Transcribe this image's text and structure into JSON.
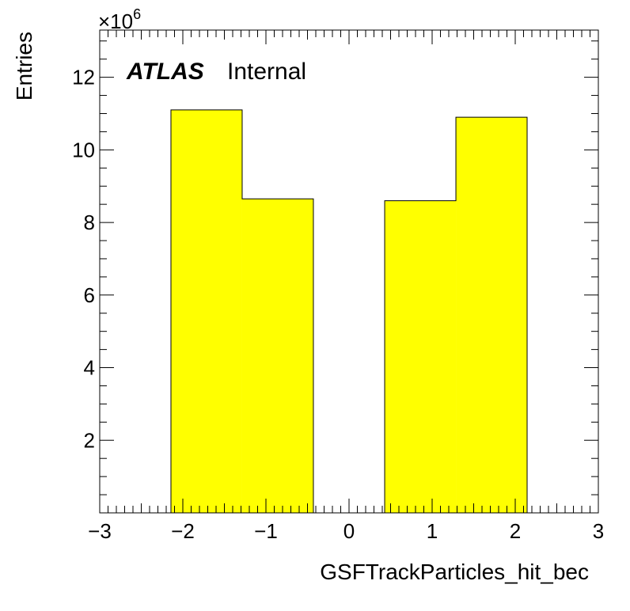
{
  "chart_data": {
    "type": "bar",
    "histogram": true,
    "bin_edges": [
      -3,
      -2.143,
      -1.286,
      -0.429,
      0.429,
      1.286,
      2.143,
      3
    ],
    "values": [
      0,
      11100000,
      8650000,
      0,
      8600000,
      10900000,
      0
    ],
    "fill_color": "#ffff00",
    "edge_color": "#000000",
    "xlabel": "GSFTrackParticles_hit_bec",
    "ylabel": "Entries",
    "xlim": [
      -3,
      3
    ],
    "ylim": [
      0,
      13300000
    ],
    "x_ticks": [
      -3,
      -2,
      -1,
      0,
      1,
      2,
      3
    ],
    "x_tick_labels": [
      "−3",
      "−2",
      "−1",
      "0",
      "1",
      "2",
      "3"
    ],
    "y_ticks": [
      2,
      4,
      6,
      8,
      10,
      12
    ],
    "y_tick_labels": [
      "2",
      "4",
      "6",
      "8",
      "10",
      "12"
    ],
    "y_multiplier": {
      "base": "×10",
      "exponent": "6"
    },
    "annotation": {
      "bold": "ATLAS",
      "text": "Internal"
    }
  }
}
